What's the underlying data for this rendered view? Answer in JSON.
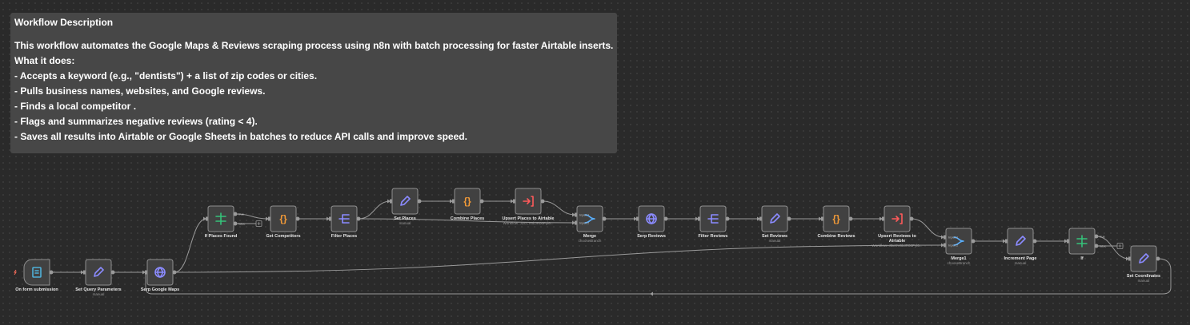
{
  "note": {
    "title": "Workflow Description",
    "lines": [
      "This workflow automates the Google Maps & Reviews scraping process using n8n with batch processing for faster Airtable inserts.",
      "What it does:",
      "- Accepts a keyword (e.g., \"dentists\") + a list of zip codes or cities.",
      "- Pulls business names, websites, and Google reviews.",
      "- Finds a local competitor .",
      "- Flags and summarizes negative reviews (rating < 4).",
      "- Saves all results into Airtable or Google Sheets in batches to reduce API calls and improve speed."
    ]
  },
  "nodes": [
    {
      "label": "On form submission"
    },
    {
      "label": "Set Query Parameters",
      "subtitle": "manual"
    },
    {
      "label": "Serp Google Maps"
    },
    {
      "label": "If Places Found",
      "outputs": [
        "true",
        "false"
      ]
    },
    {
      "label": "Get Competitors"
    },
    {
      "label": "Filter Places"
    },
    {
      "label": "Set Places",
      "subtitle": "manual"
    },
    {
      "label": "Combine Places"
    },
    {
      "label": "Upsert Places to Airtable",
      "subtitle": "Workflow: JDcCV6bJR00Pyl6..."
    },
    {
      "label": "Merge",
      "subtitle": "chooseBranch",
      "inputs": [
        "Input 1",
        "Input 2"
      ]
    },
    {
      "label": "Serp Reviews"
    },
    {
      "label": "Filter Reviews"
    },
    {
      "label": "Set Reviews",
      "subtitle": "manual"
    },
    {
      "label": "Combine Reviews"
    },
    {
      "label": "Upsert Reviews to Airtable",
      "subtitle": "Workflow: JDcCV6bJR00Pyl6..."
    },
    {
      "label": "Merge1",
      "subtitle": "chooseBranch",
      "inputs": [
        "Input 1",
        "Input 2"
      ]
    },
    {
      "label": "Increment Page",
      "subtitle": "manual"
    },
    {
      "label": "If",
      "outputs": [
        "true",
        "false"
      ]
    },
    {
      "label": "Set Coordinates",
      "subtitle": "manual"
    }
  ]
}
